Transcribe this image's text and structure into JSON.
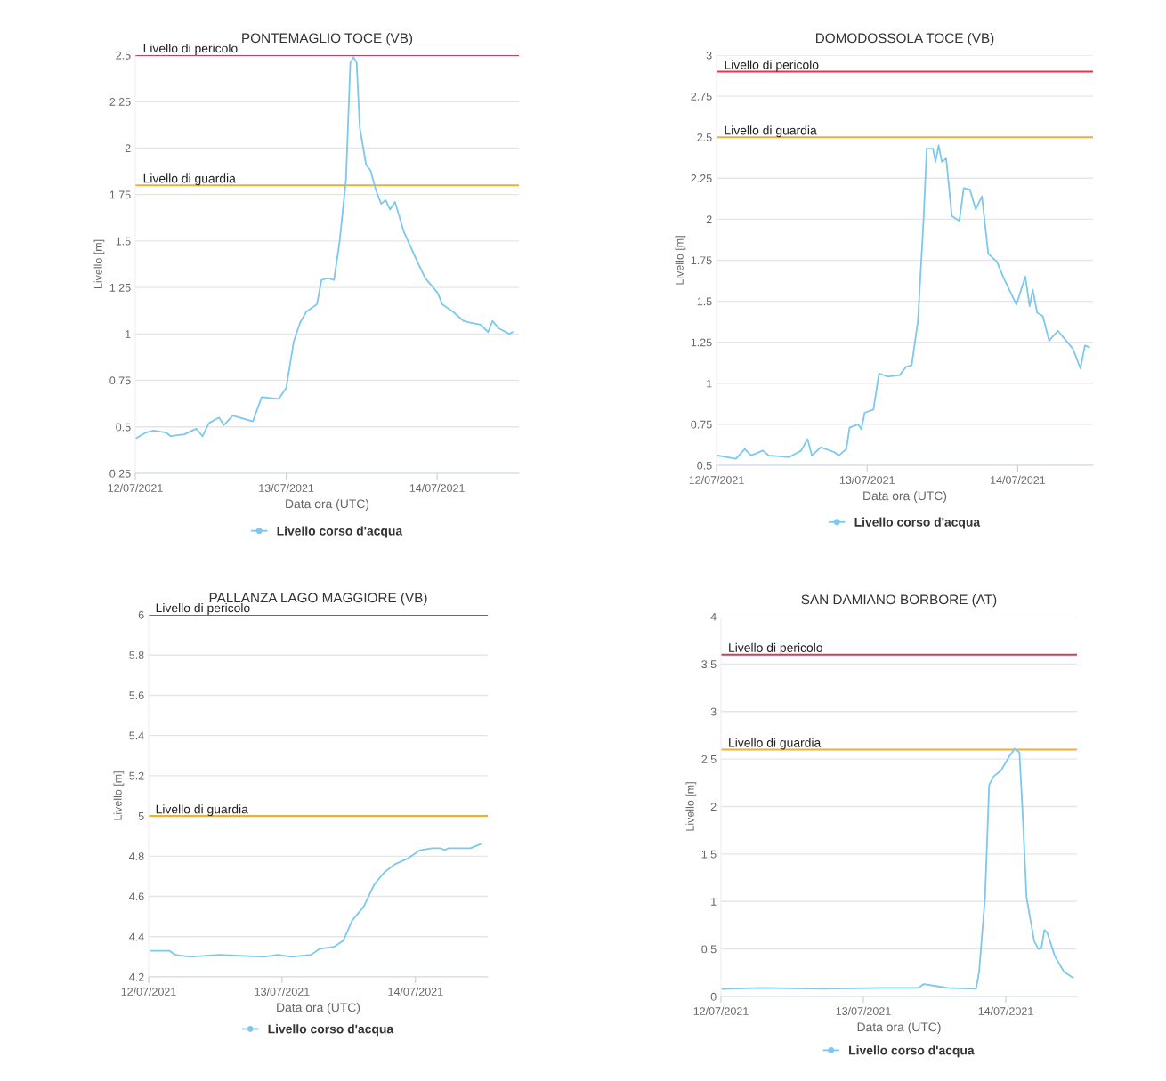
{
  "chart_data": [
    {
      "type": "line",
      "title": "PONTEMAGLIO TOCE (VB)",
      "xlabel": "Data ora (UTC)",
      "ylabel": "Livello [m]",
      "legend": "bottom",
      "grid": "y",
      "marker": "none",
      "x": [
        "2021-07-12T00:12",
        "2021-07-12T01:42",
        "2021-07-12T02:54",
        "2021-07-12T04:54",
        "2021-07-12T05:36",
        "2021-07-12T07:48",
        "2021-07-12T09:42",
        "2021-07-12T10:42",
        "2021-07-12T11:42",
        "2021-07-12T13:18",
        "2021-07-12T14:06",
        "2021-07-12T15:30",
        "2021-07-12T18:42",
        "2021-07-12T20:06",
        "2021-07-12T22:48",
        "2021-07-13T00:00",
        "2021-07-13T01:12",
        "2021-07-13T02:12",
        "2021-07-13T03:12",
        "2021-07-13T04:54",
        "2021-07-13T05:36",
        "2021-07-13T06:36",
        "2021-07-13T07:36",
        "2021-07-13T08:30",
        "2021-07-13T09:30",
        "2021-07-13T10:12",
        "2021-07-13T10:42",
        "2021-07-13T11:12",
        "2021-07-13T11:42",
        "2021-07-13T12:42",
        "2021-07-13T13:24",
        "2021-07-13T14:18",
        "2021-07-13T15:06",
        "2021-07-13T15:48",
        "2021-07-13T16:30",
        "2021-07-13T17:18",
        "2021-07-13T18:42",
        "2021-07-13T20:42",
        "2021-07-13T22:06",
        "2021-07-14T00:06",
        "2021-07-14T00:48",
        "2021-07-14T02:30",
        "2021-07-14T04:12",
        "2021-07-14T05:24",
        "2021-07-14T06:54",
        "2021-07-14T08:06",
        "2021-07-14T08:48",
        "2021-07-14T09:48",
        "2021-07-14T11:30",
        "2021-07-14T12:00"
      ],
      "series": [
        {
          "name": "Livello corso d'acqua",
          "color": "#7cc8ee",
          "values": [
            0.44,
            0.47,
            0.48,
            0.47,
            0.45,
            0.46,
            0.49,
            0.45,
            0.52,
            0.55,
            0.51,
            0.56,
            0.53,
            0.66,
            0.65,
            0.71,
            0.96,
            1.06,
            1.12,
            1.16,
            1.29,
            1.3,
            1.29,
            1.5,
            1.83,
            2.46,
            2.49,
            2.46,
            2.11,
            1.91,
            1.88,
            1.77,
            1.7,
            1.72,
            1.67,
            1.71,
            1.55,
            1.4,
            1.3,
            1.22,
            1.16,
            1.12,
            1.07,
            1.06,
            1.05,
            1.01,
            1.07,
            1.03,
            1.0,
            1.01
          ]
        }
      ],
      "xlim": [
        "2021-07-12T00:00",
        "2021-07-14T13:00"
      ],
      "xticks": [
        {
          "value": "2021-07-12",
          "label": "12/07/2021"
        },
        {
          "value": "2021-07-13",
          "label": "13/07/2021"
        },
        {
          "value": "2021-07-14",
          "label": "14/07/2021"
        }
      ],
      "ylim": [
        0.25,
        2.5
      ],
      "yticks": [
        0.25,
        0.5,
        0.75,
        1,
        1.25,
        1.5,
        1.75,
        2,
        2.25,
        2.5
      ],
      "ref_lines": [
        {
          "axis": "y",
          "value": 2.5,
          "label": "Livello di pericolo",
          "color": "#e8334f"
        },
        {
          "axis": "y",
          "value": 1.8,
          "label": "Livello di guardia",
          "color": "#e8b23a"
        }
      ]
    },
    {
      "type": "line",
      "title": "DOMODOSSOLA TOCE (VB)",
      "xlabel": "Data ora (UTC)",
      "ylabel": "Livello [m]",
      "legend": "bottom",
      "grid": "y",
      "marker": "none",
      "x": [
        "2021-07-12T00:12",
        "2021-07-12T01:42",
        "2021-07-12T03:06",
        "2021-07-12T04:30",
        "2021-07-12T05:30",
        "2021-07-12T07:24",
        "2021-07-12T08:18",
        "2021-07-12T11:36",
        "2021-07-12T13:30",
        "2021-07-12T14:30",
        "2021-07-12T15:12",
        "2021-07-12T16:36",
        "2021-07-12T18:48",
        "2021-07-12T19:30",
        "2021-07-12T20:42",
        "2021-07-12T21:12",
        "2021-07-12T22:36",
        "2021-07-12T23:06",
        "2021-07-12T23:36",
        "2021-07-13T01:00",
        "2021-07-13T01:54",
        "2021-07-13T03:18",
        "2021-07-13T05:12",
        "2021-07-13T06:12",
        "2021-07-13T07:06",
        "2021-07-13T08:06",
        "2021-07-13T09:00",
        "2021-07-13T09:30",
        "2021-07-13T10:30",
        "2021-07-13T10:54",
        "2021-07-13T11:24",
        "2021-07-13T11:54",
        "2021-07-13T12:36",
        "2021-07-13T13:30",
        "2021-07-13T14:42",
        "2021-07-13T15:24",
        "2021-07-13T16:24",
        "2021-07-13T17:18",
        "2021-07-13T18:18",
        "2021-07-13T19:18",
        "2021-07-13T20:42",
        "2021-07-13T21:54",
        "2021-07-13T23:48",
        "2021-07-14T01:12",
        "2021-07-14T01:54",
        "2021-07-14T02:24",
        "2021-07-14T03:06",
        "2021-07-14T04:00",
        "2021-07-14T05:00",
        "2021-07-14T06:24",
        "2021-07-14T08:48",
        "2021-07-14T10:00",
        "2021-07-14T10:42",
        "2021-07-14T11:24"
      ],
      "series": [
        {
          "name": "Livello corso d'acqua",
          "color": "#7cc8ee",
          "values": [
            0.56,
            0.55,
            0.54,
            0.6,
            0.56,
            0.59,
            0.56,
            0.55,
            0.59,
            0.66,
            0.56,
            0.61,
            0.58,
            0.56,
            0.6,
            0.73,
            0.75,
            0.72,
            0.82,
            0.84,
            1.06,
            1.04,
            1.05,
            1.1,
            1.11,
            1.38,
            2.0,
            2.43,
            2.43,
            2.35,
            2.45,
            2.35,
            2.37,
            2.02,
            1.99,
            2.19,
            2.18,
            2.06,
            2.14,
            1.79,
            1.74,
            1.63,
            1.48,
            1.65,
            1.47,
            1.57,
            1.43,
            1.41,
            1.26,
            1.32,
            1.21,
            1.09,
            1.23,
            1.22
          ]
        }
      ],
      "xlim": [
        "2021-07-12T00:00",
        "2021-07-14T12:00"
      ],
      "xticks": [
        {
          "value": "2021-07-12",
          "label": "12/07/2021"
        },
        {
          "value": "2021-07-13",
          "label": "13/07/2021"
        },
        {
          "value": "2021-07-14",
          "label": "14/07/2021"
        }
      ],
      "ylim": [
        0.5,
        3
      ],
      "yticks": [
        0.5,
        0.75,
        1,
        1.25,
        1.5,
        1.75,
        2,
        2.25,
        2.5,
        2.75,
        3
      ],
      "ref_lines": [
        {
          "axis": "y",
          "value": 2.9,
          "label": "Livello di pericolo",
          "color": "#e8334f"
        },
        {
          "axis": "y",
          "value": 2.5,
          "label": "Livello di guardia",
          "color": "#e8b23a"
        }
      ]
    },
    {
      "type": "line",
      "title": "PALLANZA LAGO MAGGIORE (VB)",
      "xlabel": "Data ora (UTC)",
      "ylabel": "Livello [m]",
      "legend": "bottom",
      "grid": "y",
      "marker": "none",
      "x": [
        "2021-07-12T00:18",
        "2021-07-12T03:42",
        "2021-07-12T04:48",
        "2021-07-12T07:24",
        "2021-07-12T12:42",
        "2021-07-12T20:42",
        "2021-07-12T23:18",
        "2021-07-13T01:42",
        "2021-07-13T05:12",
        "2021-07-13T06:48",
        "2021-07-13T09:24",
        "2021-07-13T11:00",
        "2021-07-13T12:36",
        "2021-07-13T14:42",
        "2021-07-13T16:36",
        "2021-07-13T18:24",
        "2021-07-13T20:18",
        "2021-07-13T22:42",
        "2021-07-14T00:48",
        "2021-07-14T03:00",
        "2021-07-14T04:30",
        "2021-07-14T05:18",
        "2021-07-14T05:54",
        "2021-07-14T09:54",
        "2021-07-14T11:42"
      ],
      "series": [
        {
          "name": "Livello corso d'acqua",
          "color": "#7cc8ee",
          "values": [
            4.33,
            4.33,
            4.31,
            4.3,
            4.31,
            4.3,
            4.31,
            4.3,
            4.31,
            4.34,
            4.35,
            4.38,
            4.48,
            4.55,
            4.66,
            4.72,
            4.76,
            4.79,
            4.83,
            4.84,
            4.84,
            4.83,
            4.84,
            4.84,
            4.86
          ]
        }
      ],
      "xlim": [
        "2021-07-12T00:00",
        "2021-07-14T13:00"
      ],
      "xticks": [
        {
          "value": "2021-07-12",
          "label": "12/07/2021"
        },
        {
          "value": "2021-07-13",
          "label": "13/07/2021"
        },
        {
          "value": "2021-07-14",
          "label": "14/07/2021"
        }
      ],
      "ylim": [
        4.2,
        6
      ],
      "yticks": [
        4.2,
        4.4,
        4.6,
        4.8,
        5,
        5.2,
        5.4,
        5.6,
        5.8,
        6
      ],
      "ref_lines": [
        {
          "axis": "y",
          "value": 6,
          "label": "Livello di pericolo",
          "color": "#e8334f"
        },
        {
          "axis": "y",
          "value": 5,
          "label": "Livello di guardia",
          "color": "#e8b23a"
        }
      ]
    },
    {
      "type": "line",
      "title": "SAN DAMIANO BORBORE (AT)",
      "xlabel": "Data ora (UTC)",
      "ylabel": "Livello [m]",
      "legend": "bottom",
      "grid": "y",
      "marker": "none",
      "x": [
        "2021-07-12T00:15",
        "2021-07-12T07:00",
        "2021-07-12T17:06",
        "2021-07-13T03:06",
        "2021-07-13T09:12",
        "2021-07-13T10:12",
        "2021-07-13T12:12",
        "2021-07-13T14:12",
        "2021-07-13T19:00",
        "2021-07-13T19:30",
        "2021-07-13T20:30",
        "2021-07-13T21:12",
        "2021-07-13T22:00",
        "2021-07-13T23:12",
        "2021-07-14T00:30",
        "2021-07-14T01:30",
        "2021-07-14T02:18",
        "2021-07-14T02:48",
        "2021-07-14T03:30",
        "2021-07-14T04:48",
        "2021-07-14T05:30",
        "2021-07-14T06:00",
        "2021-07-14T06:30",
        "2021-07-14T07:00",
        "2021-07-14T08:18",
        "2021-07-14T09:48",
        "2021-07-14T11:18"
      ],
      "series": [
        {
          "name": "Livello corso d'acqua",
          "color": "#7cc8ee",
          "values": [
            0.08,
            0.09,
            0.08,
            0.09,
            0.09,
            0.13,
            0.11,
            0.09,
            0.08,
            0.26,
            1.04,
            2.23,
            2.32,
            2.38,
            2.52,
            2.61,
            2.57,
            1.98,
            1.04,
            0.58,
            0.5,
            0.51,
            0.7,
            0.67,
            0.42,
            0.26,
            0.2
          ]
        }
      ],
      "xlim": [
        "2021-07-12T00:00",
        "2021-07-14T12:00"
      ],
      "xticks": [
        {
          "value": "2021-07-12",
          "label": "12/07/2021"
        },
        {
          "value": "2021-07-13",
          "label": "13/07/2021"
        },
        {
          "value": "2021-07-14",
          "label": "14/07/2021"
        }
      ],
      "ylim": [
        0,
        4
      ],
      "yticks": [
        0,
        0.5,
        1,
        1.5,
        2,
        2.5,
        3,
        3.5,
        4
      ],
      "ref_lines": [
        {
          "axis": "y",
          "value": 3.6,
          "label": "Livello di pericolo",
          "color": "#e8334f"
        },
        {
          "axis": "y",
          "value": 2.6,
          "label": "Livello di guardia",
          "color": "#e8b23a"
        }
      ]
    }
  ]
}
